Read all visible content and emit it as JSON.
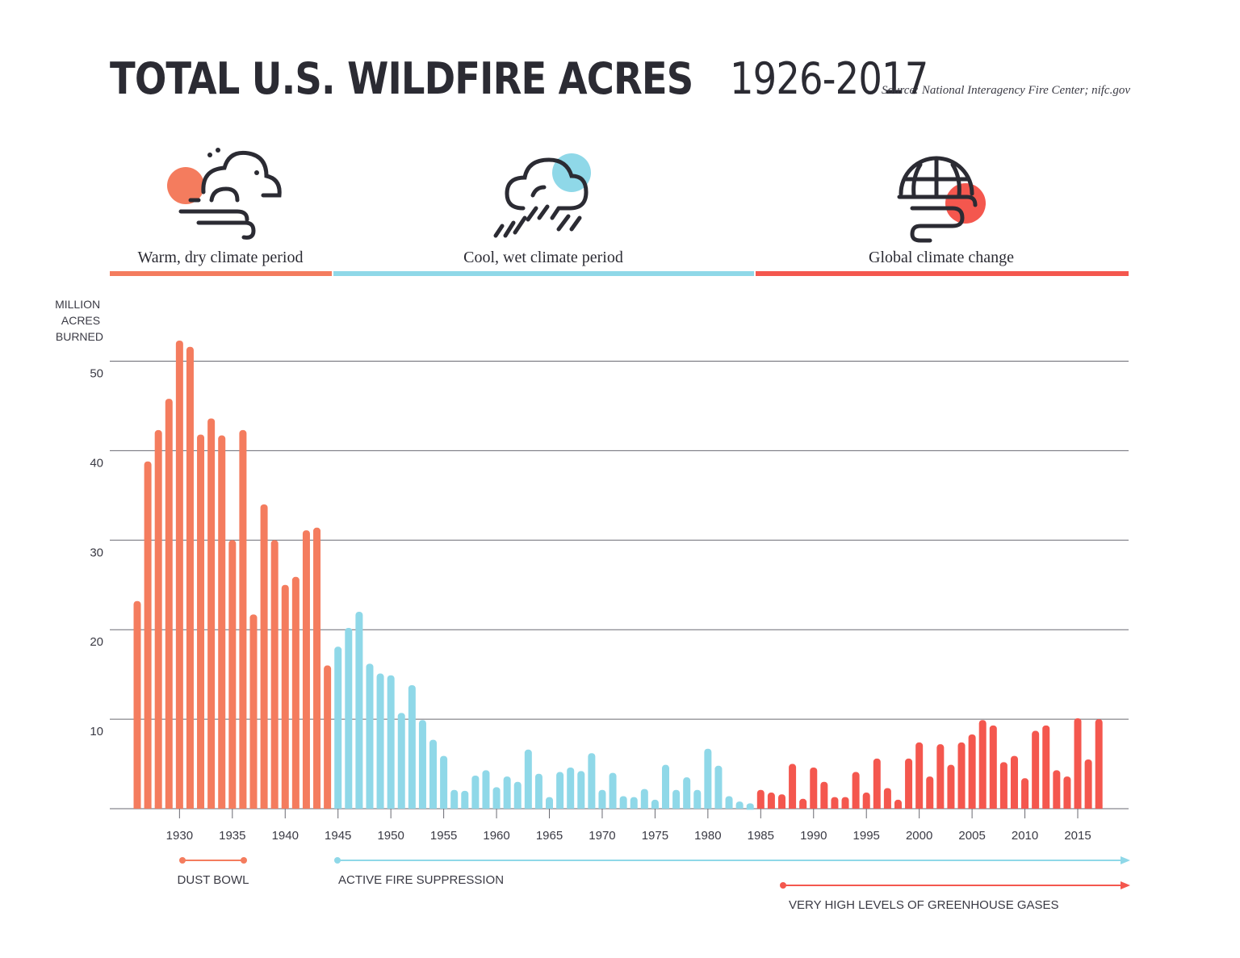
{
  "header": {
    "title_bold": "TOTAL U.S. WILDFIRE ACRES",
    "title_years": "1926-2017",
    "source": "Source: National Interagency Fire Center; nifc.gov"
  },
  "periods": [
    {
      "label": "Warm, dry climate period",
      "color": "#f47c5e",
      "icon": "sun-wind-cloud-icon"
    },
    {
      "label": "Cool, wet climate period",
      "color": "#8fd8e8",
      "icon": "rain-cloud-icon"
    },
    {
      "label": "Global climate change",
      "color": "#f4574e",
      "icon": "globe-sun-wind-icon"
    }
  ],
  "annotations": [
    {
      "label": "DUST BOWL",
      "color": "#f47c5e"
    },
    {
      "label": "ACTIVE FIRE SUPPRESSION",
      "color": "#8fd8e8"
    },
    {
      "label": "VERY HIGH LEVELS OF GREENHOUSE GASES",
      "color": "#f4574e"
    }
  ],
  "chart_data": {
    "type": "bar",
    "title": "TOTAL U.S. WILDFIRE ACRES 1926-2017",
    "ylabel": "MILLION ACRES BURNED",
    "ylim": [
      0,
      50
    ],
    "yticks": [
      10,
      20,
      30,
      40,
      50
    ],
    "xticks": [
      1930,
      1935,
      1940,
      1945,
      1950,
      1955,
      1960,
      1965,
      1970,
      1975,
      1980,
      1985,
      1990,
      1995,
      2000,
      2005,
      2010,
      2015
    ],
    "grid": true,
    "colors": {
      "1926-1944": "#f47c5e",
      "1945-1984": "#8fd8e8",
      "1985-2017": "#f4574e"
    },
    "x": [
      1926,
      1927,
      1928,
      1929,
      1930,
      1931,
      1932,
      1933,
      1934,
      1935,
      1936,
      1937,
      1938,
      1939,
      1940,
      1941,
      1942,
      1943,
      1944,
      1945,
      1946,
      1947,
      1948,
      1949,
      1950,
      1951,
      1952,
      1953,
      1954,
      1955,
      1956,
      1957,
      1958,
      1959,
      1960,
      1961,
      1962,
      1963,
      1964,
      1965,
      1966,
      1967,
      1968,
      1969,
      1970,
      1971,
      1972,
      1973,
      1974,
      1975,
      1976,
      1977,
      1978,
      1979,
      1980,
      1981,
      1982,
      1983,
      1984,
      1985,
      1986,
      1987,
      1988,
      1989,
      1990,
      1991,
      1992,
      1993,
      1994,
      1995,
      1996,
      1997,
      1998,
      1999,
      2000,
      2001,
      2002,
      2003,
      2004,
      2005,
      2006,
      2007,
      2008,
      2009,
      2010,
      2011,
      2012,
      2013,
      2014,
      2015,
      2016,
      2017
    ],
    "values": [
      23.2,
      38.8,
      42.3,
      45.8,
      52.3,
      51.6,
      41.8,
      43.6,
      41.7,
      30.0,
      42.3,
      21.7,
      34.0,
      30.0,
      25.0,
      25.9,
      31.1,
      31.4,
      16.0,
      18.1,
      20.2,
      22.0,
      16.2,
      15.1,
      14.9,
      10.7,
      13.8,
      9.9,
      7.7,
      5.9,
      2.1,
      2.0,
      3.7,
      4.3,
      2.4,
      3.6,
      3.0,
      6.6,
      3.9,
      1.3,
      4.1,
      4.6,
      4.2,
      6.2,
      2.1,
      4.0,
      1.4,
      1.3,
      2.2,
      1.0,
      4.9,
      2.1,
      3.5,
      2.1,
      6.7,
      4.8,
      1.4,
      0.8,
      0.6,
      2.1,
      1.8,
      1.6,
      5.0,
      1.1,
      4.6,
      3.0,
      1.3,
      1.3,
      4.1,
      1.8,
      5.6,
      2.3,
      1.0,
      5.6,
      7.4,
      3.6,
      7.2,
      4.9,
      7.4,
      8.3,
      9.9,
      9.3,
      5.2,
      5.9,
      3.4,
      8.7,
      9.3,
      4.3,
      3.6,
      10.1,
      5.5,
      10.0
    ]
  }
}
